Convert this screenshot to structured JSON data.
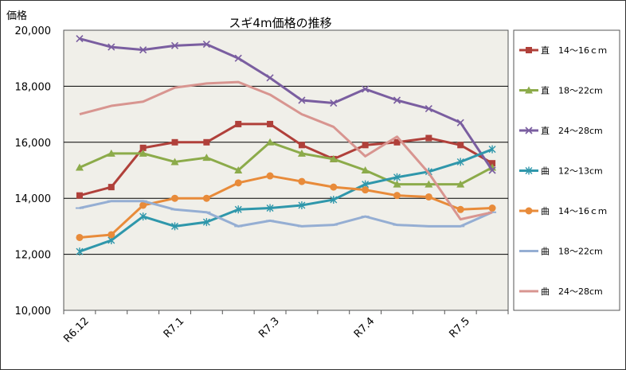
{
  "chart_data": {
    "type": "line",
    "title": "スギ4m価格の推移",
    "ylabel": "価格",
    "xlabel": "",
    "ylim": [
      10000,
      20000
    ],
    "yticks": [
      "10,000",
      "12,000",
      "14,000",
      "16,000",
      "18,000",
      "20,000"
    ],
    "yticks_values": [
      10000,
      12000,
      14000,
      16000,
      18000,
      20000
    ],
    "xtick_labels": [
      {
        "index": 0,
        "label": "R6.12"
      },
      {
        "index": 3,
        "label": "R7.1"
      },
      {
        "index": 6,
        "label": "R7.3"
      },
      {
        "index": 9,
        "label": "R7.4"
      },
      {
        "index": 12,
        "label": "R7.5"
      }
    ],
    "points_count": 14,
    "grid": true,
    "legend_position": "right",
    "plot_background": "#f0efe9",
    "series": [
      {
        "name": "直　14～16ｃｍ",
        "color": "#b0403a",
        "marker": "square",
        "values": [
          14100,
          14400,
          15800,
          16000,
          16000,
          16650,
          16650,
          15900,
          15400,
          15900,
          16000,
          16150,
          15900,
          15250
        ]
      },
      {
        "name": "直　18～22cm",
        "color": "#8cab4a",
        "marker": "triangle",
        "values": [
          15100,
          15600,
          15600,
          15300,
          15450,
          15000,
          16000,
          15600,
          15400,
          15000,
          14500,
          14500,
          14500,
          15100
        ]
      },
      {
        "name": "直　24～28cm",
        "color": "#7a5ea0",
        "marker": "x",
        "values": [
          19700,
          19400,
          19300,
          19450,
          19500,
          19000,
          18300,
          17500,
          17400,
          17900,
          17500,
          17200,
          16700,
          15000
        ]
      },
      {
        "name": "曲　12～13cm",
        "color": "#2f97ab",
        "marker": "star",
        "values": [
          12100,
          12500,
          13350,
          13000,
          13150,
          13600,
          13650,
          13750,
          13950,
          14500,
          14750,
          14950,
          15300,
          15750
        ]
      },
      {
        "name": "曲　14～16ｃｍ",
        "color": "#e88b3a",
        "marker": "circle",
        "values": [
          12600,
          12700,
          13750,
          14000,
          14000,
          14550,
          14800,
          14600,
          14400,
          14300,
          14100,
          14050,
          13600,
          13650
        ]
      },
      {
        "name": "曲　18～22cm",
        "color": "#95aed3",
        "marker": "dash",
        "values": [
          13650,
          13900,
          13900,
          13600,
          13500,
          13000,
          13200,
          13000,
          13050,
          13350,
          13050,
          13000,
          13000,
          13500
        ]
      },
      {
        "name": "曲　24～28cm",
        "color": "#d89590",
        "marker": "none",
        "values": [
          17000,
          17300,
          17450,
          17950,
          18100,
          18150,
          17700,
          17000,
          16550,
          15500,
          16200,
          14900,
          13250,
          13500
        ]
      }
    ]
  }
}
